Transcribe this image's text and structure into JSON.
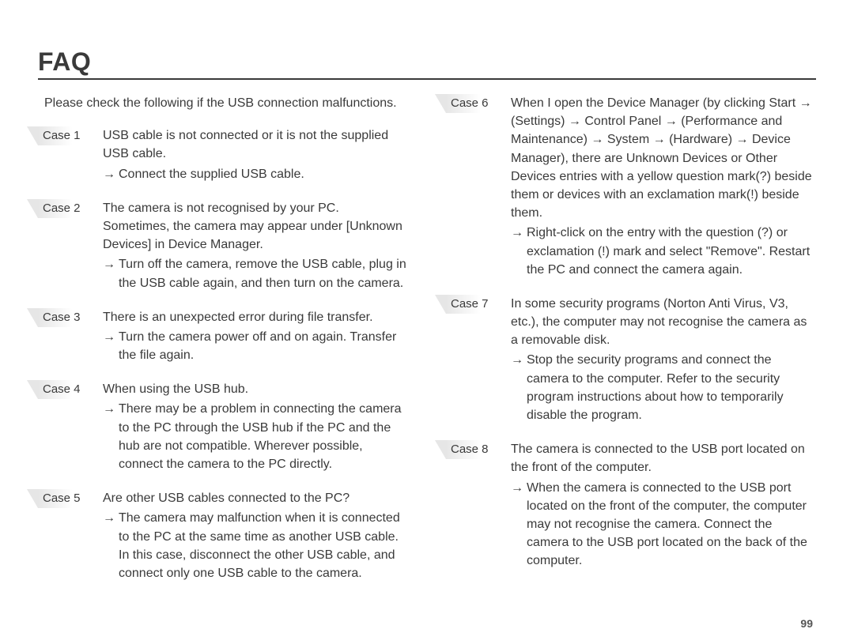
{
  "title": "FAQ",
  "intro": "Please check the following if the USB connection malfunctions.",
  "arrow_glyph": "→",
  "page_number": "99",
  "left_cases": [
    {
      "label": "Case 1",
      "desc": "USB cable is not connected or it is not the supplied USB cable.",
      "action": "Connect the supplied USB cable."
    },
    {
      "label": "Case 2",
      "desc": "The camera is not recognised by your PC. Sometimes, the camera may appear under [Unknown Devices] in Device Manager.",
      "action": "Turn off the camera, remove the USB cable, plug in the USB cable again, and then turn on the camera."
    },
    {
      "label": "Case 3",
      "desc": "There is an unexpected error during file transfer.",
      "action": "Turn the camera power off and on again. Transfer the file again."
    },
    {
      "label": "Case 4",
      "desc": "When using the USB hub.",
      "action": "There may be a problem in connecting the camera to the PC through the USB hub if the PC and the hub are not compatible. Wherever possible, connect the camera to the PC directly."
    },
    {
      "label": "Case 5",
      "desc": "Are other USB cables connected to the PC?",
      "action": "The camera may malfunction when it is connected to the PC at the same time as another USB cable. In this case, disconnect the other USB cable, and connect only one USB cable to the camera."
    }
  ],
  "right_cases": [
    {
      "label": "Case 6",
      "desc": "When I open the Device Manager (by clicking Start → (Settings) → Control Panel → (Performance and Maintenance) → System → (Hardware) → Device Manager), there are Unknown Devices or Other Devices entries with a yellow question mark(?) beside them or devices with an exclamation mark(!) beside them.",
      "action": "Right-click on the entry with the question (?) or exclamation (!) mark and select \"Remove\". Restart the PC and connect the camera again."
    },
    {
      "label": "Case 7",
      "desc": "In some security programs (Norton Anti Virus, V3, etc.), the computer may not recognise the camera as a removable disk.",
      "action": "Stop the security programs and connect the camera to the computer. Refer to the security program instructions about how to temporarily disable the program."
    },
    {
      "label": "Case 8",
      "desc": "The camera is connected to the USB port located on the  front of the computer.",
      "action": "When the camera is connected to the USB port located on the front of the computer, the computer may not recognise the camera. Connect the camera to the USB port located on the back of  the computer."
    }
  ]
}
